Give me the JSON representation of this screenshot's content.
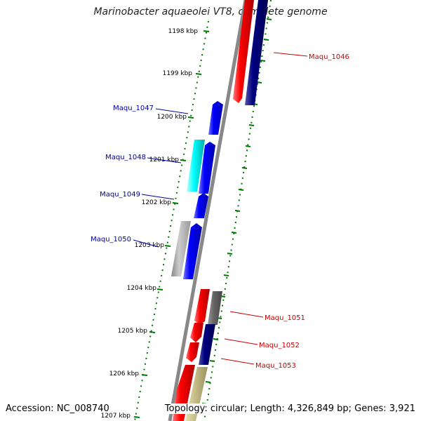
{
  "title": "Marinobacter aquaeolei VT8, complete genome",
  "footer": {
    "accession": "Accession: NC_008740",
    "stats": "Topology: circular; Length: 4,326,849 bp; Genes: 3,921"
  },
  "scale_ticks": [
    "1198 kbp",
    "1199 kbp",
    "1200 kbp",
    "1201 kbp",
    "1202 kbp",
    "1203 kbp",
    "1204 kbp",
    "1205 kbp",
    "1206 kbp",
    "1207 kbp"
  ],
  "genes": [
    {
      "label": "Maqu_1046",
      "color": "#cc0000"
    },
    {
      "label": "Maqu_1047",
      "color": "#000099"
    },
    {
      "label": "Maqu_1048",
      "color": "#000099"
    },
    {
      "label": "Maqu_1049",
      "color": "#000099"
    },
    {
      "label": "Maqu_1050",
      "color": "#000099"
    },
    {
      "label": "Maqu_1051",
      "color": "#cc0000"
    },
    {
      "label": "Maqu_1052",
      "color": "#cc0000"
    },
    {
      "label": "Maqu_1053",
      "color": "#cc0000"
    }
  ],
  "colors": {
    "backbone": "#888888",
    "tick": "#007700",
    "forward": "#0000ff",
    "reverse": "#ff0000",
    "dark_blue": "#000080",
    "cyan": "#00ffff",
    "gray": "#b0b0b0",
    "dark_gray": "#666666",
    "khaki": "#c8c08a"
  }
}
